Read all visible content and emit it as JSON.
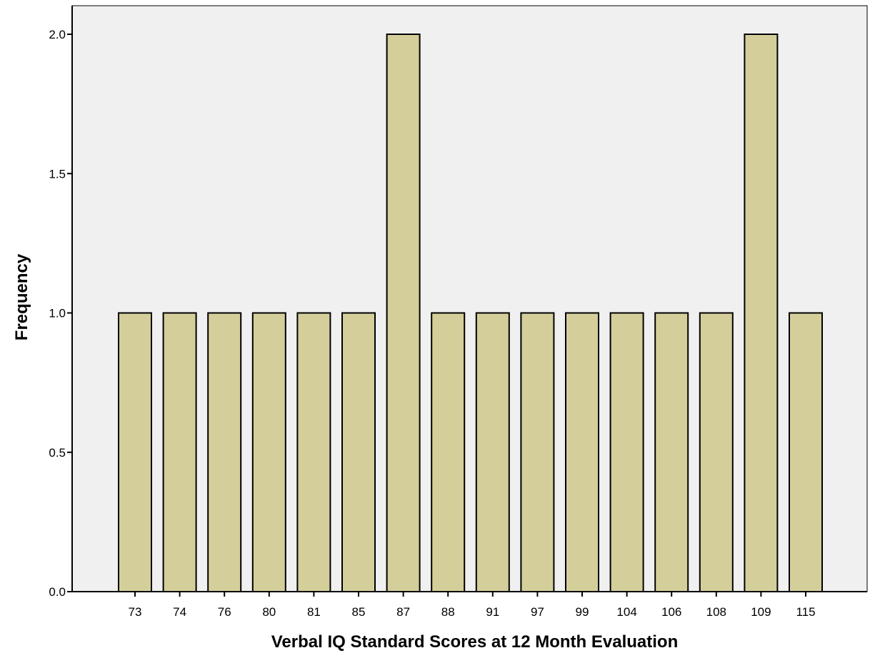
{
  "colors": {
    "plot_background": "#f0f0f0",
    "bar_fill": "#d4cf9a",
    "bar_stroke": "#000000",
    "axis": "#000000"
  },
  "chart_data": {
    "type": "bar",
    "title": "",
    "xlabel": "Verbal IQ Standard Scores at 12 Month Evaluation",
    "ylabel": "Frequency",
    "categories": [
      "73",
      "74",
      "76",
      "80",
      "81",
      "85",
      "87",
      "88",
      "91",
      "97",
      "99",
      "104",
      "106",
      "108",
      "109",
      "115"
    ],
    "values": [
      1,
      1,
      1,
      1,
      1,
      1,
      2,
      1,
      1,
      1,
      1,
      1,
      1,
      1,
      2,
      1
    ],
    "ylim": [
      0,
      2.0
    ],
    "yticks": [
      "0.0",
      "0.5",
      "1.0",
      "1.5",
      "2.0"
    ],
    "grid": false,
    "legend": "none"
  }
}
